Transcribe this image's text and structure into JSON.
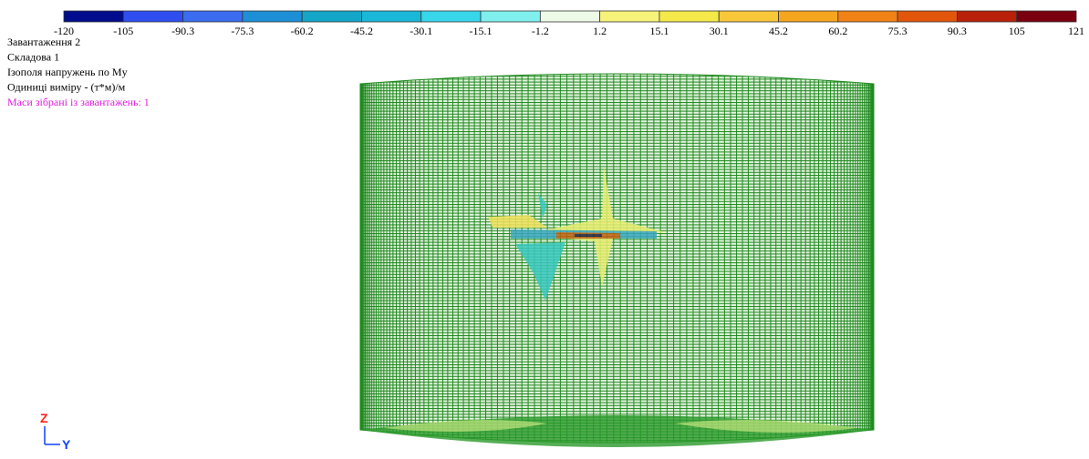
{
  "legend": {
    "labels": [
      "-120",
      "-105",
      "-90.3",
      "-75.3",
      "-60.2",
      "-45.2",
      "-30.1",
      "-15.1",
      "-1.2",
      "1.2",
      "15.1",
      "30.1",
      "45.2",
      "60.2",
      "75.3",
      "90.3",
      "105",
      "121"
    ],
    "colors": [
      "#000c8c",
      "#2e4ef0",
      "#3b6cf0",
      "#1d8fd6",
      "#14a6c8",
      "#1ab8d8",
      "#38d6ea",
      "#7ff0ee",
      "#eefae8",
      "#f7f37a",
      "#f5e94a",
      "#f8c83a",
      "#f5a51e",
      "#f08216",
      "#e2560c",
      "#b8200a",
      "#7a0010"
    ]
  },
  "info": [
    "Завантаження 2",
    "Складова  1",
    "Ізополя напружень по My",
    "Одиниці виміру - (т*м)/м",
    "Маси зібрані із завантажень:  1"
  ],
  "axes": {
    "z": "Z",
    "y": "Y"
  }
}
